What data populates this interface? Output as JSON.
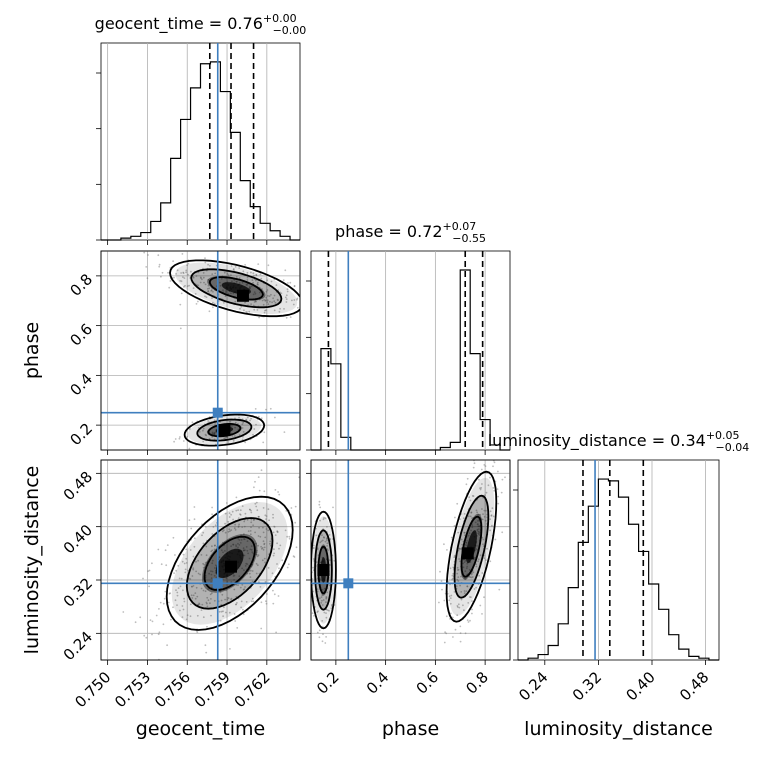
{
  "chart_data": {
    "type": "corner",
    "parameters": [
      {
        "name": "geocent_time",
        "label": "geocent_time",
        "range": [
          0.7495,
          0.7645
        ],
        "ticks": [
          0.75,
          0.753,
          0.756,
          0.759,
          0.762
        ],
        "tick_labels": [
          "0.750",
          "0.753",
          "0.756",
          "0.759",
          "0.762"
        ],
        "title_main": "geocent_time = 0.76",
        "title_plus": "+0.00",
        "title_minus": "−0.00",
        "median": 0.7593,
        "quantiles": [
          0.7577,
          0.7593,
          0.761
        ],
        "truth": 0.7583,
        "hist_bins": [
          0.7495,
          0.7645,
          20
        ],
        "hist_counts": [
          0,
          0,
          1,
          2,
          4,
          10,
          20,
          44,
          65,
          82,
          95,
          96,
          80,
          58,
          32,
          18,
          9,
          5,
          2,
          0
        ]
      },
      {
        "name": "phase",
        "label": "phase",
        "range": [
          0.1,
          0.9
        ],
        "ticks": [
          0.2,
          0.4,
          0.6,
          0.8
        ],
        "tick_labels": [
          "0.2",
          "0.4",
          "0.6",
          "0.8"
        ],
        "title_main": "phase = 0.72",
        "title_plus": "+0.07",
        "title_minus": "−0.55",
        "median": 0.72,
        "quantiles": [
          0.17,
          0.72,
          0.79
        ],
        "truth": 0.25,
        "hist_bins": [
          0.1,
          0.9,
          20
        ],
        "hist_counts": [
          0,
          40,
          34,
          5,
          0,
          0,
          0,
          0,
          0,
          0,
          0,
          0,
          0,
          1,
          3,
          71,
          38,
          12,
          2,
          0
        ]
      },
      {
        "name": "luminosity_distance",
        "label": "luminosity_distance",
        "range": [
          0.2,
          0.5
        ],
        "ticks": [
          0.24,
          0.32,
          0.4,
          0.48
        ],
        "tick_labels": [
          "0.24",
          "0.32",
          "0.40",
          "0.48"
        ],
        "title_main": "luminosity_distance = 0.34",
        "title_plus": "+0.05",
        "title_minus": "−0.04",
        "median": 0.337,
        "quantiles": [
          0.297,
          0.337,
          0.387
        ],
        "truth": 0.315,
        "hist_bins": [
          0.2,
          0.5,
          20
        ],
        "hist_counts": [
          0,
          1,
          3,
          8,
          20,
          40,
          65,
          85,
          100,
          99,
          90,
          75,
          60,
          42,
          28,
          14,
          6,
          2,
          1,
          0
        ]
      }
    ],
    "pairs": [
      {
        "x": "geocent_time",
        "y": "phase",
        "clusters": [
          {
            "cx": 0.7597,
            "cy": 0.75,
            "sx": 0.002,
            "sy": 0.045,
            "rho": -0.55,
            "n": 340,
            "peak": [
              0.7602,
              0.72
            ]
          },
          {
            "cx": 0.7588,
            "cy": 0.18,
            "sx": 0.0012,
            "sy": 0.025,
            "rho": 0.3,
            "n": 140,
            "peak": [
              0.7588,
              0.18
            ]
          }
        ]
      },
      {
        "x": "geocent_time",
        "y": "luminosity_distance",
        "clusters": [
          {
            "cx": 0.7592,
            "cy": 0.345,
            "sx": 0.0019,
            "sy": 0.04,
            "rho": 0.5,
            "n": 560,
            "peak": [
              0.7593,
              0.34
            ]
          }
        ]
      },
      {
        "x": "phase",
        "y": "luminosity_distance",
        "clusters": [
          {
            "cx": 0.15,
            "cy": 0.335,
            "sx": 0.02,
            "sy": 0.035,
            "rho": 0.0,
            "n": 180,
            "peak": [
              0.15,
              0.335
            ]
          },
          {
            "cx": 0.745,
            "cy": 0.37,
            "sx": 0.04,
            "sy": 0.045,
            "rho": 0.6,
            "n": 360,
            "peak": [
              0.73,
              0.36
            ]
          }
        ]
      }
    ],
    "truth_color": "#3f7fbf",
    "grid": true,
    "levels_sigma": [
      1,
      2,
      3
    ]
  }
}
